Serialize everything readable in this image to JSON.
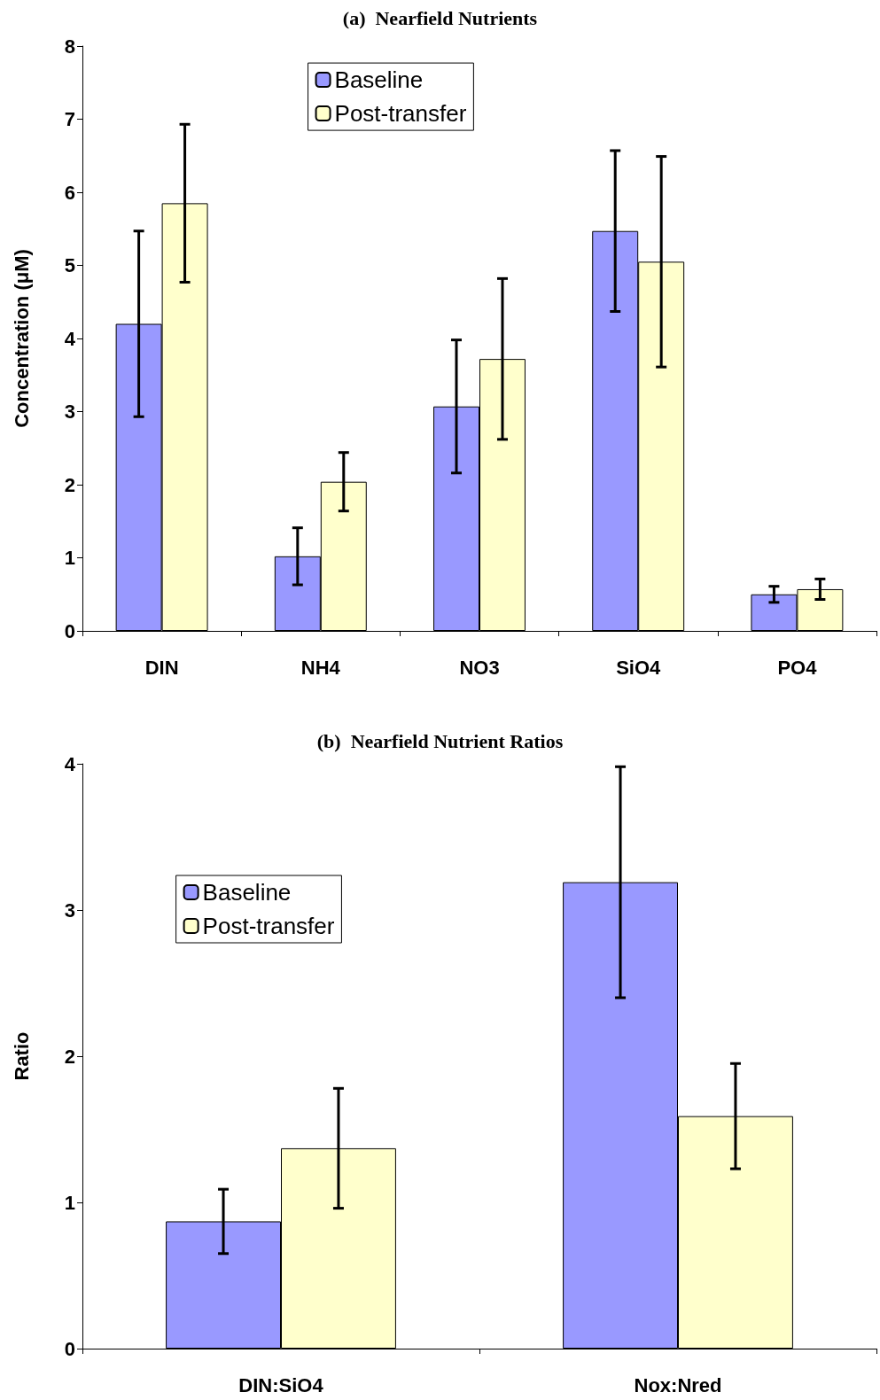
{
  "chart_data": [
    {
      "type": "bar",
      "title": "(a)  Nearfield Nutrients",
      "ylabel": "Concentration (μM)",
      "categories": [
        "DIN",
        "NH4",
        "NO3",
        "SiO4",
        "PO4"
      ],
      "ylim": [
        0,
        8
      ],
      "yticks": [
        0,
        1,
        2,
        3,
        4,
        5,
        6,
        7,
        8
      ],
      "grid": false,
      "legend": "top",
      "series": [
        {
          "name": "Baseline",
          "color": "#9999ff",
          "values": [
            4.2,
            1.02,
            3.07,
            5.47,
            0.5
          ],
          "errors": [
            1.27,
            0.39,
            0.91,
            1.1,
            0.11
          ]
        },
        {
          "name": "Post-transfer",
          "color": "#ffffcc",
          "values": [
            5.85,
            2.04,
            3.72,
            5.05,
            0.57
          ],
          "errors": [
            1.08,
            0.4,
            1.1,
            1.44,
            0.14
          ]
        }
      ]
    },
    {
      "type": "bar",
      "title": "(b)  Nearfield Nutrient Ratios",
      "ylabel": "Ratio",
      "categories": [
        "DIN:SiO4",
        "Nox:Nred"
      ],
      "ylim": [
        0,
        4
      ],
      "yticks": [
        0,
        1,
        2,
        3,
        4
      ],
      "grid": false,
      "legend": "top left",
      "series": [
        {
          "name": "Baseline",
          "color": "#9999ff",
          "values": [
            0.87,
            3.19
          ],
          "errors": [
            0.22,
            0.79
          ]
        },
        {
          "name": "Post-transfer",
          "color": "#ffffcc",
          "values": [
            1.37,
            1.59
          ],
          "errors": [
            0.41,
            0.36
          ]
        }
      ]
    }
  ]
}
